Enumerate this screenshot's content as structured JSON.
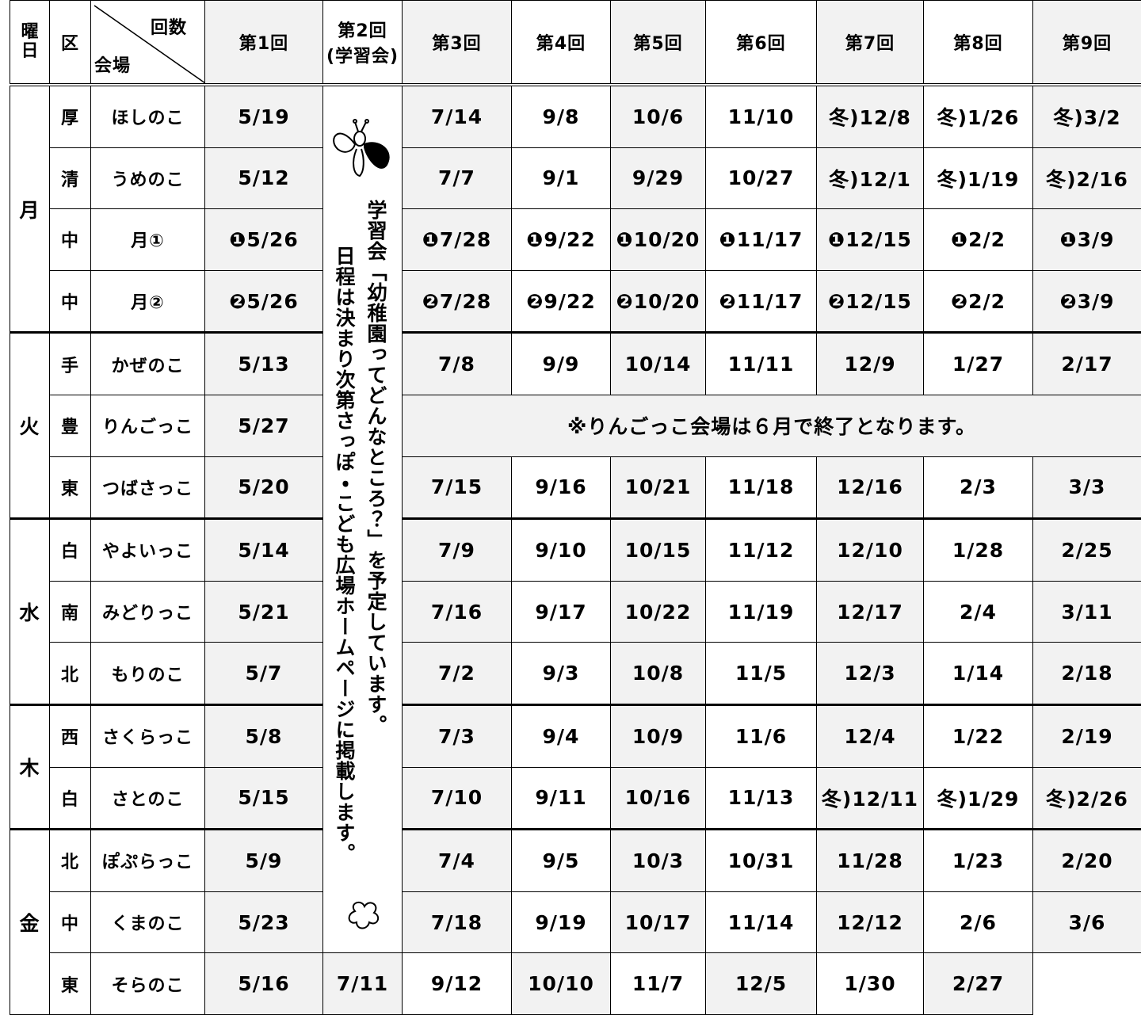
{
  "header": {
    "weekday": "曜日",
    "ward": "区",
    "count": "回数",
    "venue": "会場",
    "sessions": [
      "第1回",
      "第2回",
      "第3回",
      "第4回",
      "第5回",
      "第6回",
      "第7回",
      "第8回",
      "第9回"
    ],
    "session2_sub": "(学習会)"
  },
  "study": {
    "line1": "学習会「幼稚園ってどんなところ？」を予定しています。",
    "line2": "日程は決まり次第さっぽ・こども広場ホームページに掲載します。"
  },
  "groups": [
    {
      "day": "月",
      "rows": [
        {
          "ward": "厚",
          "venue": "ほしのこ",
          "first": "5/19",
          "dates": [
            "7/14",
            "9/8",
            "10/6",
            "11/10",
            "冬)12/8",
            "冬)1/26",
            "冬)3/2"
          ]
        },
        {
          "ward": "清",
          "venue": "うめのこ",
          "first": "5/12",
          "dates": [
            "7/7",
            "9/1",
            "9/29",
            "10/27",
            "冬)12/1",
            "冬)1/19",
            "冬)2/16"
          ]
        },
        {
          "ward": "中",
          "venue": "月①",
          "first": "❶5/26",
          "dates": [
            "❶7/28",
            "❶9/22",
            "❶10/20",
            "❶11/17",
            "❶12/15",
            "❶2/2",
            "❶3/9"
          ]
        },
        {
          "ward": "中",
          "venue": "月②",
          "first": "❷5/26",
          "dates": [
            "❷7/28",
            "❷9/22",
            "❷10/20",
            "❷11/17",
            "❷12/15",
            "❷2/2",
            "❷3/9"
          ]
        }
      ]
    },
    {
      "day": "火",
      "rows": [
        {
          "ward": "手",
          "venue": "かぜのこ",
          "first": "5/13",
          "dates": [
            "7/8",
            "9/9",
            "10/14",
            "11/11",
            "12/9",
            "1/27",
            "2/17"
          ]
        },
        {
          "ward": "豊",
          "venue": "りんごっこ",
          "first": "5/27",
          "note": "※りんごっこ会場は６月で終了となります。"
        },
        {
          "ward": "東",
          "venue": "つばさっこ",
          "first": "5/20",
          "dates": [
            "7/15",
            "9/16",
            "10/21",
            "11/18",
            "12/16",
            "2/3",
            "3/3"
          ]
        }
      ]
    },
    {
      "day": "水",
      "rows": [
        {
          "ward": "白",
          "venue": "やよいっこ",
          "first": "5/14",
          "dates": [
            "7/9",
            "9/10",
            "10/15",
            "11/12",
            "12/10",
            "1/28",
            "2/25"
          ]
        },
        {
          "ward": "南",
          "venue": "みどりっこ",
          "first": "5/21",
          "dates": [
            "7/16",
            "9/17",
            "10/22",
            "11/19",
            "12/17",
            "2/4",
            "3/11"
          ]
        },
        {
          "ward": "北",
          "venue": "もりのこ",
          "first": "5/7",
          "dates": [
            "7/2",
            "9/3",
            "10/8",
            "11/5",
            "12/3",
            "1/14",
            "2/18"
          ]
        }
      ]
    },
    {
      "day": "木",
      "rows": [
        {
          "ward": "西",
          "venue": "さくらっこ",
          "first": "5/8",
          "dates": [
            "7/3",
            "9/4",
            "10/9",
            "11/6",
            "12/4",
            "1/22",
            "2/19"
          ]
        },
        {
          "ward": "白",
          "venue": "さとのこ",
          "first": "5/15",
          "dates": [
            "7/10",
            "9/11",
            "10/16",
            "11/13",
            "冬)12/11",
            "冬)1/29",
            "冬)2/26"
          ]
        }
      ]
    },
    {
      "day": "金",
      "rows": [
        {
          "ward": "北",
          "venue": "ぽぷらっこ",
          "first": "5/9",
          "dates": [
            "7/4",
            "9/5",
            "10/3",
            "10/31",
            "11/28",
            "1/23",
            "2/20"
          ]
        },
        {
          "ward": "中",
          "venue": "くまのこ",
          "first": "5/23",
          "dates": [
            "7/18",
            "9/19",
            "10/17",
            "11/14",
            "12/12",
            "2/6",
            "3/6"
          ]
        },
        {
          "ward": "東",
          "venue": "そらのこ",
          "first": "5/16",
          "dates": [
            "7/11",
            "9/12",
            "10/10",
            "11/7",
            "12/5",
            "1/30",
            "2/27"
          ]
        }
      ]
    }
  ]
}
